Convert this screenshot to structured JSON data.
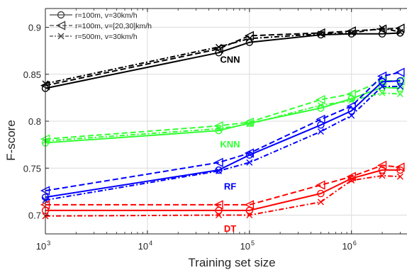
{
  "chart_data": {
    "type": "line",
    "xlabel": "Training set size",
    "ylabel": "F-score",
    "x_scale": "log",
    "xlim": [
      1000,
      3500000
    ],
    "ylim": [
      0.68,
      0.92
    ],
    "x_ticks": [
      {
        "value": 1000,
        "base": "10",
        "exp": "3"
      },
      {
        "value": 10000,
        "base": "10",
        "exp": "4"
      },
      {
        "value": 100000,
        "base": "10",
        "exp": "5"
      },
      {
        "value": 1000000,
        "base": "10",
        "exp": "6"
      }
    ],
    "y_ticks": [
      {
        "value": 0.7,
        "label": "0.7"
      },
      {
        "value": 0.75,
        "label": "0.75"
      },
      {
        "value": 0.8,
        "label": "0.8"
      },
      {
        "value": 0.85,
        "label": "0.85"
      },
      {
        "value": 0.9,
        "label": "0.9"
      }
    ],
    "grid": true,
    "legend_position": "top-left",
    "legend": [
      {
        "label": "r=100m, v=30km/h",
        "style": "solid",
        "marker": "circle"
      },
      {
        "label": "r=100m, v=[20,30]km/h",
        "style": "dashed",
        "marker": "triangle-left"
      },
      {
        "label": "r=500m, v=30km/h",
        "style": "dashdot",
        "marker": "x"
      }
    ],
    "x": [
      1000,
      50000,
      100000,
      500000,
      1000000,
      2000000,
      3000000
    ],
    "groups": [
      {
        "name": "CNN",
        "color": "#000000",
        "label_x": 50000,
        "label_y": 0.866,
        "series": [
          {
            "style": "solid",
            "marker": "circle",
            "values": [
              0.835,
              0.873,
              0.884,
              0.892,
              0.893,
              0.893,
              0.894
            ]
          },
          {
            "style": "dashed",
            "marker": "triangle-left",
            "values": [
              0.838,
              0.877,
              0.891,
              0.894,
              0.896,
              0.898,
              0.899
            ]
          },
          {
            "style": "dashdot",
            "marker": "x",
            "values": [
              0.84,
              0.879,
              0.888,
              0.893,
              0.894,
              0.899,
              0.895
            ]
          }
        ]
      },
      {
        "name": "KNN",
        "color": "#33ff33",
        "label_x": 50000,
        "label_y": 0.776,
        "series": [
          {
            "style": "solid",
            "marker": "circle",
            "values": [
              0.777,
              0.79,
              0.798,
              0.814,
              0.824,
              0.836,
              0.835
            ]
          },
          {
            "style": "dashed",
            "marker": "triangle-left",
            "values": [
              0.781,
              0.795,
              0.799,
              0.823,
              0.829,
              0.843,
              0.843
            ]
          },
          {
            "style": "dashdot",
            "marker": "x",
            "values": [
              0.779,
              0.792,
              0.797,
              0.817,
              0.822,
              0.83,
              0.829
            ]
          }
        ]
      },
      {
        "name": "RF",
        "color": "#0000ff",
        "label_x": 50000,
        "label_y": 0.731,
        "series": [
          {
            "style": "solid",
            "marker": "circle",
            "values": [
              0.719,
              0.748,
              0.764,
              0.796,
              0.811,
              0.842,
              0.843
            ]
          },
          {
            "style": "dashed",
            "marker": "triangle-left",
            "values": [
              0.726,
              0.756,
              0.766,
              0.802,
              0.816,
              0.848,
              0.852
            ]
          },
          {
            "style": "dashdot",
            "marker": "x",
            "values": [
              0.716,
              0.747,
              0.756,
              0.789,
              0.806,
              0.837,
              0.837
            ]
          }
        ]
      },
      {
        "name": "DT",
        "color": "#ff0000",
        "label_x": 50000,
        "label_y": 0.686,
        "series": [
          {
            "style": "solid",
            "marker": "circle",
            "values": [
              0.705,
              0.705,
              0.705,
              0.723,
              0.739,
              0.748,
              0.748
            ]
          },
          {
            "style": "dashed",
            "marker": "triangle-left",
            "values": [
              0.711,
              0.711,
              0.711,
              0.732,
              0.741,
              0.753,
              0.751
            ]
          },
          {
            "style": "dashdot",
            "marker": "x",
            "values": [
              0.699,
              0.7,
              0.7,
              0.714,
              0.737,
              0.742,
              0.741
            ]
          }
        ]
      }
    ]
  }
}
